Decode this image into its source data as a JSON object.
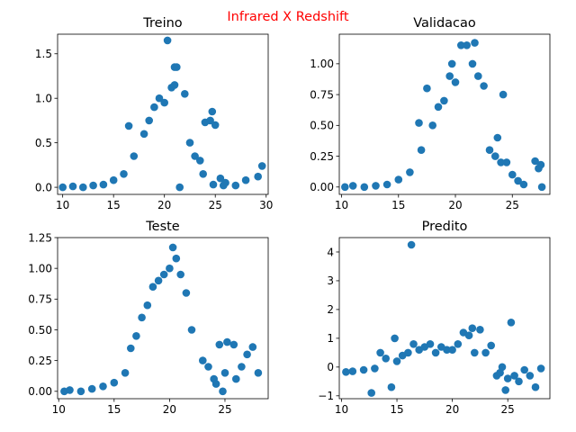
{
  "suptitle": "Infrared X Redshift",
  "colors": {
    "marker": "#1f77b4",
    "suptitle": "#ff0000",
    "axes": "#000000"
  },
  "chart_data": [
    {
      "type": "scatter",
      "title": "Treino",
      "xlim": [
        9.5,
        30.2
      ],
      "ylim": [
        -0.08,
        1.72
      ],
      "xticks": [
        10,
        15,
        20,
        25,
        30
      ],
      "xtick_labels": [
        "10",
        "15",
        "20",
        "25",
        "30"
      ],
      "yticks": [
        0.0,
        0.5,
        1.0,
        1.5
      ],
      "ytick_labels": [
        "0.0",
        "0.5",
        "1.0",
        "1.5"
      ],
      "points": [
        [
          10.0,
          0.0
        ],
        [
          11.0,
          0.01
        ],
        [
          12.0,
          0.0
        ],
        [
          13.0,
          0.02
        ],
        [
          14.0,
          0.03
        ],
        [
          15.0,
          0.08
        ],
        [
          16.0,
          0.15
        ],
        [
          16.5,
          0.69
        ],
        [
          17.0,
          0.35
        ],
        [
          18.0,
          0.6
        ],
        [
          18.5,
          0.75
        ],
        [
          19.0,
          0.9
        ],
        [
          19.5,
          1.0
        ],
        [
          20.0,
          0.95
        ],
        [
          20.3,
          1.65
        ],
        [
          20.7,
          1.12
        ],
        [
          21.0,
          1.35
        ],
        [
          21.2,
          1.35
        ],
        [
          21.0,
          1.15
        ],
        [
          22.0,
          1.05
        ],
        [
          22.5,
          0.5
        ],
        [
          23.0,
          0.35
        ],
        [
          23.5,
          0.3
        ],
        [
          24.0,
          0.73
        ],
        [
          24.5,
          0.75
        ],
        [
          24.7,
          0.85
        ],
        [
          25.0,
          0.7
        ],
        [
          25.5,
          0.1
        ],
        [
          26.0,
          0.05
        ],
        [
          27.0,
          0.02
        ],
        [
          28.0,
          0.08
        ],
        [
          29.2,
          0.12
        ],
        [
          29.6,
          0.24
        ],
        [
          23.8,
          0.15
        ],
        [
          24.8,
          0.03
        ],
        [
          21.5,
          0.0
        ],
        [
          25.8,
          0.02
        ]
      ]
    },
    {
      "type": "scatter",
      "title": "Validacao",
      "xlim": [
        9.8,
        28.3
      ],
      "ylim": [
        -0.06,
        1.24
      ],
      "xticks": [
        10,
        15,
        20,
        25
      ],
      "xtick_labels": [
        "10",
        "15",
        "20",
        "25"
      ],
      "yticks": [
        0.0,
        0.25,
        0.5,
        0.75,
        1.0
      ],
      "ytick_labels": [
        "0.00",
        "0.25",
        "0.50",
        "0.75",
        "1.00"
      ],
      "points": [
        [
          10.3,
          0.0
        ],
        [
          11.0,
          0.01
        ],
        [
          12.0,
          0.0
        ],
        [
          13.0,
          0.01
        ],
        [
          14.0,
          0.02
        ],
        [
          15.0,
          0.06
        ],
        [
          16.0,
          0.12
        ],
        [
          16.8,
          0.52
        ],
        [
          17.0,
          0.3
        ],
        [
          17.5,
          0.8
        ],
        [
          18.0,
          0.5
        ],
        [
          18.5,
          0.65
        ],
        [
          19.0,
          0.7
        ],
        [
          19.5,
          0.9
        ],
        [
          19.7,
          1.0
        ],
        [
          20.0,
          0.85
        ],
        [
          20.5,
          1.15
        ],
        [
          21.0,
          1.15
        ],
        [
          21.7,
          1.17
        ],
        [
          21.5,
          1.0
        ],
        [
          22.0,
          0.9
        ],
        [
          22.5,
          0.82
        ],
        [
          23.0,
          0.3
        ],
        [
          23.5,
          0.25
        ],
        [
          23.7,
          0.4
        ],
        [
          24.0,
          0.2
        ],
        [
          24.2,
          0.75
        ],
        [
          24.5,
          0.2
        ],
        [
          25.0,
          0.1
        ],
        [
          25.5,
          0.05
        ],
        [
          26.0,
          0.02
        ],
        [
          27.0,
          0.21
        ],
        [
          27.3,
          0.15
        ],
        [
          27.5,
          0.18
        ],
        [
          27.6,
          0.0
        ]
      ]
    },
    {
      "type": "scatter",
      "title": "Teste",
      "xlim": [
        9.9,
        28.9
      ],
      "ylim": [
        -0.06,
        1.25
      ],
      "xticks": [
        10,
        15,
        20,
        25
      ],
      "xtick_labels": [
        "10",
        "15",
        "20",
        "25"
      ],
      "yticks": [
        0.0,
        0.25,
        0.5,
        0.75,
        1.0,
        1.25
      ],
      "ytick_labels": [
        "0.00",
        "0.25",
        "0.50",
        "0.75",
        "1.00",
        "1.25"
      ],
      "points": [
        [
          10.5,
          0.0
        ],
        [
          11.0,
          0.01
        ],
        [
          12.0,
          0.0
        ],
        [
          13.0,
          0.02
        ],
        [
          14.0,
          0.04
        ],
        [
          15.0,
          0.07
        ],
        [
          16.0,
          0.15
        ],
        [
          16.5,
          0.35
        ],
        [
          17.0,
          0.45
        ],
        [
          17.5,
          0.6
        ],
        [
          18.0,
          0.7
        ],
        [
          18.5,
          0.85
        ],
        [
          19.0,
          0.9
        ],
        [
          19.5,
          0.95
        ],
        [
          20.0,
          1.0
        ],
        [
          20.3,
          1.17
        ],
        [
          20.6,
          1.08
        ],
        [
          21.0,
          0.95
        ],
        [
          21.5,
          0.8
        ],
        [
          22.0,
          0.5
        ],
        [
          23.0,
          0.25
        ],
        [
          23.5,
          0.2
        ],
        [
          24.0,
          0.1
        ],
        [
          24.5,
          0.38
        ],
        [
          24.8,
          0.0
        ],
        [
          25.2,
          0.4
        ],
        [
          25.8,
          0.38
        ],
        [
          26.0,
          0.1
        ],
        [
          26.5,
          0.2
        ],
        [
          27.0,
          0.3
        ],
        [
          27.5,
          0.36
        ],
        [
          28.0,
          0.15
        ],
        [
          24.2,
          0.06
        ],
        [
          25.0,
          0.15
        ]
      ]
    },
    {
      "type": "scatter",
      "title": "Predito",
      "xlim": [
        9.8,
        28.8
      ],
      "ylim": [
        -1.1,
        4.5
      ],
      "xticks": [
        10,
        15,
        20,
        25
      ],
      "xtick_labels": [
        "10",
        "15",
        "20",
        "25"
      ],
      "yticks": [
        -1,
        0,
        1,
        2,
        3,
        4
      ],
      "ytick_labels": [
        "−1",
        "0",
        "1",
        "2",
        "3",
        "4"
      ],
      "points": [
        [
          10.4,
          -0.17
        ],
        [
          11.0,
          -0.15
        ],
        [
          12.0,
          -0.1
        ],
        [
          12.7,
          -0.9
        ],
        [
          13.0,
          -0.05
        ],
        [
          13.5,
          0.5
        ],
        [
          14.0,
          0.3
        ],
        [
          14.5,
          -0.7
        ],
        [
          14.8,
          1.0
        ],
        [
          15.0,
          0.2
        ],
        [
          15.5,
          0.4
        ],
        [
          16.0,
          0.5
        ],
        [
          16.3,
          4.25
        ],
        [
          16.5,
          0.8
        ],
        [
          17.0,
          0.6
        ],
        [
          17.5,
          0.7
        ],
        [
          18.0,
          0.8
        ],
        [
          18.5,
          0.5
        ],
        [
          19.0,
          0.7
        ],
        [
          19.5,
          0.6
        ],
        [
          20.0,
          0.6
        ],
        [
          20.5,
          0.8
        ],
        [
          21.0,
          1.2
        ],
        [
          21.5,
          1.1
        ],
        [
          21.8,
          1.35
        ],
        [
          22.0,
          0.5
        ],
        [
          22.5,
          1.3
        ],
        [
          23.0,
          0.5
        ],
        [
          23.5,
          0.75
        ],
        [
          24.0,
          -0.3
        ],
        [
          24.3,
          -0.2
        ],
        [
          24.5,
          0.0
        ],
        [
          24.8,
          -0.8
        ],
        [
          25.0,
          -0.4
        ],
        [
          25.3,
          1.55
        ],
        [
          25.6,
          -0.3
        ],
        [
          26.0,
          -0.5
        ],
        [
          26.5,
          -0.1
        ],
        [
          27.0,
          -0.3
        ],
        [
          27.5,
          -0.7
        ],
        [
          28.0,
          -0.05
        ]
      ]
    }
  ]
}
